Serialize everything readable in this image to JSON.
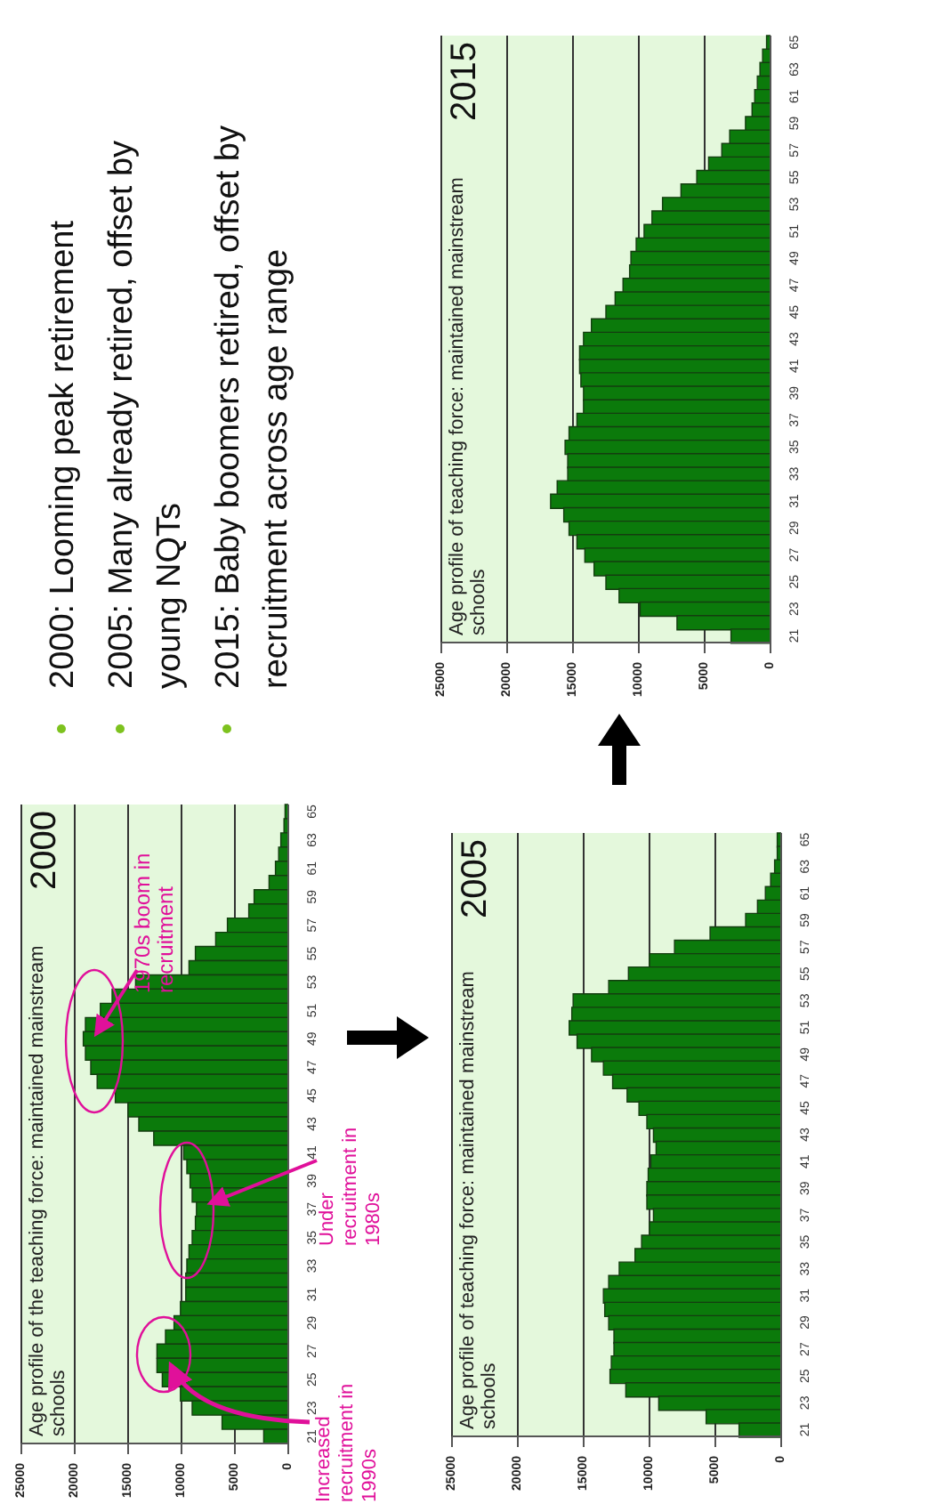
{
  "chart_data": [
    {
      "type": "bar",
      "orientation": "horizontal",
      "title": "Age profile of the teaching force: maintained mainstream schools",
      "subtitle": "2000",
      "categories": [
        "65",
        null,
        "63",
        null,
        "61",
        null,
        "59",
        null,
        "57",
        null,
        "55",
        null,
        "53",
        null,
        "51",
        null,
        "49",
        null,
        "47",
        null,
        "45",
        null,
        "43",
        null,
        "41",
        null,
        "39",
        null,
        "37",
        null,
        "35",
        null,
        "33",
        null,
        "31",
        null,
        "29",
        null,
        "27",
        null,
        "25",
        null,
        "23",
        null,
        "21"
      ],
      "values": [
        300,
        400,
        700,
        900,
        1200,
        1800,
        3200,
        3700,
        5700,
        6800,
        8700,
        9300,
        14300,
        16500,
        17600,
        19000,
        19200,
        19000,
        18500,
        17900,
        16200,
        15000,
        14000,
        12600,
        9800,
        9500,
        9200,
        9000,
        8600,
        8700,
        9000,
        9300,
        9500,
        9600,
        9600,
        10100,
        10700,
        11500,
        12300,
        12300,
        11800,
        10100,
        9000,
        6200,
        2300
      ],
      "color": "#0b7a0b",
      "xlim": [
        25000,
        0
      ],
      "xticks": [
        0,
        5000,
        10000,
        15000,
        20000,
        25000
      ],
      "grid": "x",
      "annotations": [
        "1970s boom in recruitment",
        "Under recruitment in 1980s",
        "Increased recruitment in 1990s"
      ]
    },
    {
      "type": "bar",
      "orientation": "horizontal",
      "title": "Age profile of teaching force: maintained mainstream schools",
      "subtitle": "2005",
      "categories": [
        "65",
        null,
        "63",
        null,
        "61",
        null,
        "59",
        null,
        "57",
        null,
        "55",
        null,
        "53",
        null,
        "51",
        null,
        "49",
        null,
        "47",
        null,
        "45",
        null,
        "43",
        null,
        "41",
        null,
        "39",
        null,
        "37",
        null,
        "35",
        null,
        "33",
        null,
        "31",
        null,
        "29",
        null,
        "27",
        null,
        "25",
        null,
        "23",
        null,
        "21"
      ],
      "values": [
        300,
        300,
        500,
        800,
        1200,
        1800,
        2700,
        5400,
        8100,
        10000,
        11600,
        13100,
        15800,
        15900,
        16100,
        15500,
        14400,
        13500,
        12800,
        11700,
        10800,
        10200,
        9700,
        9500,
        9900,
        10100,
        10200,
        10200,
        9700,
        10000,
        10600,
        11100,
        12300,
        13100,
        13500,
        13400,
        13100,
        12700,
        12700,
        12900,
        13000,
        11800,
        9300,
        5700,
        3200
      ],
      "color": "#0b7a0b",
      "xlim": [
        25000,
        0
      ],
      "xticks": [
        0,
        5000,
        10000,
        15000,
        20000,
        25000
      ],
      "grid": "x"
    },
    {
      "type": "bar",
      "orientation": "horizontal",
      "title": "Age profile of teaching force: maintained mainstream schools",
      "subtitle": "2015",
      "categories": [
        "65",
        null,
        "63",
        null,
        "61",
        null,
        "59",
        null,
        "57",
        null,
        "55",
        null,
        "53",
        null,
        "51",
        null,
        "49",
        null,
        "47",
        null,
        "45",
        null,
        "43",
        null,
        "41",
        null,
        "39",
        null,
        "37",
        null,
        "35",
        null,
        "33",
        null,
        "31",
        null,
        "29",
        null,
        "27",
        null,
        "25",
        null,
        "23",
        null,
        "21"
      ],
      "values": [
        300,
        600,
        800,
        1000,
        1200,
        1400,
        1900,
        3100,
        3700,
        4700,
        5600,
        6800,
        8200,
        9000,
        9600,
        10200,
        10600,
        10700,
        11200,
        11800,
        12500,
        13600,
        14200,
        14500,
        14500,
        14400,
        14200,
        14200,
        14700,
        15300,
        15600,
        15400,
        15400,
        16200,
        16700,
        15700,
        15300,
        14700,
        14100,
        13400,
        12500,
        11500,
        9900,
        7100,
        3000
      ],
      "color": "#0b7a0b",
      "xlim": [
        25000,
        0
      ],
      "xticks": [
        0,
        5000,
        10000,
        15000,
        20000,
        25000
      ],
      "grid": "x"
    },
    {
      "type": "other",
      "annotations": [
        "2000: Looming peak retirement",
        "2005: Many already retired, offset by young NQTs",
        "2015: Baby boomers retired, offset by recruitment across age range"
      ]
    }
  ]
}
